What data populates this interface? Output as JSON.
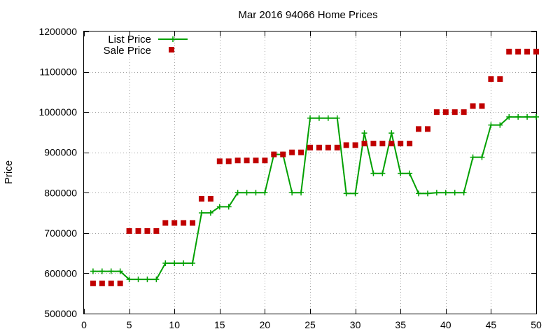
{
  "chart_data": {
    "type": "line",
    "title": "Mar 2016 94066 Home Prices",
    "xlabel": "",
    "ylabel": "Price",
    "xlim": [
      0,
      50
    ],
    "ylim": [
      500000,
      1200000
    ],
    "x_ticks": [
      "0",
      "5",
      "10",
      "15",
      "20",
      "25",
      "30",
      "35",
      "40",
      "45",
      "50"
    ],
    "y_ticks": [
      "500000",
      "600000",
      "700000",
      "800000",
      "900000",
      "1000000",
      "1100000",
      "1200000"
    ],
    "grid": true,
    "legend_position": "top-left",
    "series": [
      {
        "name": "List Price",
        "style": "line-with-plus-markers",
        "color": "#00a000",
        "x": [
          1,
          2,
          3,
          4,
          5,
          6,
          7,
          8,
          9,
          10,
          11,
          12,
          13,
          14,
          15,
          16,
          17,
          18,
          19,
          20,
          21,
          22,
          23,
          24,
          25,
          26,
          27,
          28,
          29,
          30,
          31,
          32,
          33,
          34,
          35,
          36,
          37,
          38,
          39,
          40,
          41,
          42,
          43,
          44,
          45,
          46,
          47,
          48,
          49,
          50
        ],
        "values": [
          605000,
          605000,
          605000,
          605000,
          585000,
          585000,
          585000,
          585000,
          625000,
          625000,
          625000,
          625000,
          750000,
          750000,
          765000,
          765000,
          800000,
          800000,
          800000,
          800000,
          895000,
          895000,
          800000,
          800000,
          985000,
          985000,
          985000,
          985000,
          798000,
          798000,
          948000,
          848000,
          848000,
          948000,
          848000,
          848000,
          798000,
          798000,
          800000,
          800000,
          800000,
          800000,
          888000,
          888000,
          968000,
          968000,
          988000,
          988000,
          988000,
          988000
        ]
      },
      {
        "name": "Sale Price",
        "style": "square-markers",
        "color": "#c00000",
        "x": [
          1,
          2,
          3,
          4,
          5,
          6,
          7,
          8,
          9,
          10,
          11,
          12,
          13,
          14,
          15,
          16,
          17,
          18,
          19,
          20,
          21,
          22,
          23,
          24,
          25,
          26,
          27,
          28,
          29,
          30,
          31,
          32,
          33,
          34,
          35,
          36,
          37,
          38,
          39,
          40,
          41,
          42,
          43,
          44,
          45,
          46,
          47,
          48,
          49,
          50
        ],
        "values": [
          575000,
          575000,
          575000,
          575000,
          705000,
          705000,
          705000,
          705000,
          725000,
          725000,
          725000,
          725000,
          785000,
          785000,
          878000,
          878000,
          880000,
          880000,
          880000,
          880000,
          895000,
          895000,
          900000,
          900000,
          912000,
          912000,
          912000,
          912000,
          918000,
          918000,
          922000,
          922000,
          922000,
          922000,
          922000,
          922000,
          958000,
          958000,
          1000000,
          1000000,
          1000000,
          1000000,
          1015000,
          1015000,
          1082000,
          1082000,
          1150000,
          1150000,
          1150000,
          1150000
        ]
      }
    ]
  }
}
